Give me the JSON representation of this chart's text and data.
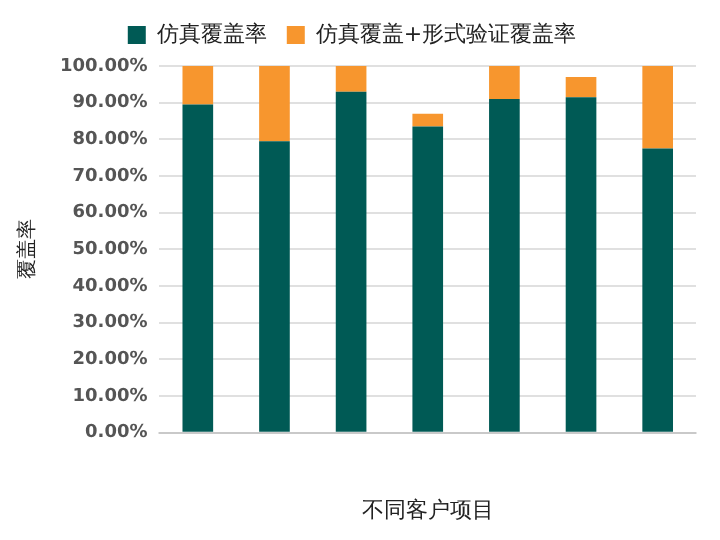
{
  "chart_data": {
    "type": "bar",
    "stacked": true,
    "categories": [
      null,
      null,
      null,
      null,
      null,
      null,
      null
    ],
    "series": [
      {
        "name": "仿真覆盖率",
        "color": "#005a55",
        "values": [
          89.5,
          79.5,
          93,
          83.5,
          91,
          91.5,
          77.5
        ]
      },
      {
        "name": "仿真覆盖+形式验证覆盖率",
        "color": "#f7962e",
        "values": [
          10.5,
          20.5,
          7,
          3.5,
          9,
          5.5,
          22.5
        ]
      }
    ],
    "xlabel": "不同客户项目",
    "ylabel": "覆盖率",
    "ylim": [
      0,
      100
    ],
    "yticks": [
      {
        "value": 0,
        "label": "0.00%"
      },
      {
        "value": 10,
        "label": "10.00%"
      },
      {
        "value": 20,
        "label": "20.00%"
      },
      {
        "value": 30,
        "label": "30.00%"
      },
      {
        "value": 40,
        "label": "40.00%"
      },
      {
        "value": 50,
        "label": "50.00%"
      },
      {
        "value": 60,
        "label": "60.00%"
      },
      {
        "value": 70,
        "label": "70.00%"
      },
      {
        "value": 80,
        "label": "80.00%"
      },
      {
        "value": 90,
        "label": "90.00%"
      },
      {
        "value": 100,
        "label": "100.00%"
      }
    ],
    "grid": "y",
    "legend": "top"
  }
}
